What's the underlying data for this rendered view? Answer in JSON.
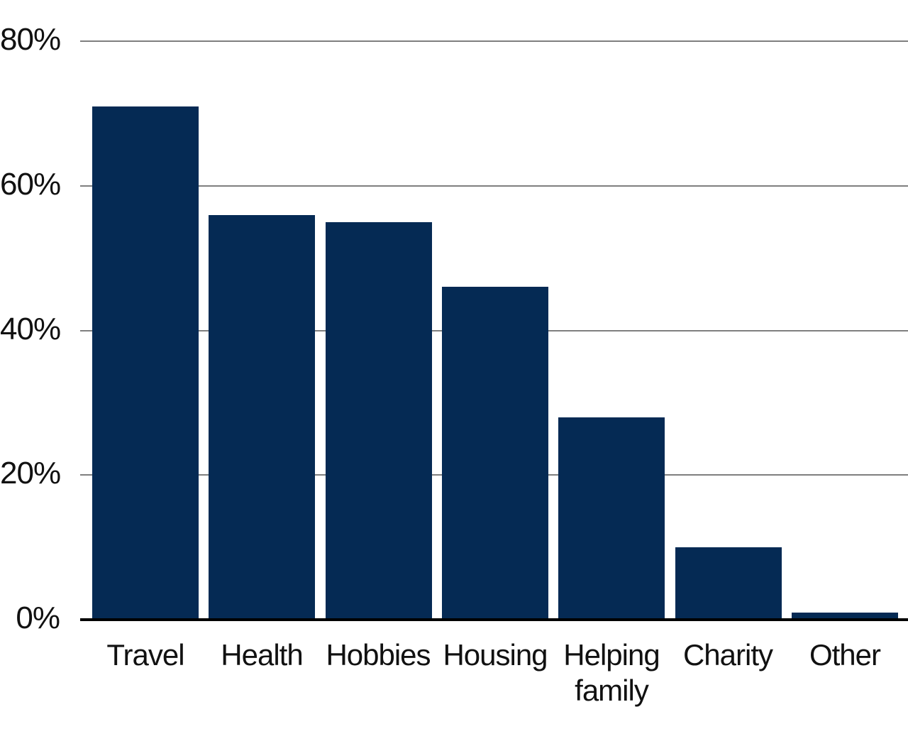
{
  "chart_data": {
    "type": "bar",
    "title": "",
    "xlabel": "",
    "ylabel": "",
    "categories": [
      "Travel",
      "Health",
      "Hobbies",
      "Housing",
      "Helping family",
      "Charity",
      "Other"
    ],
    "values": [
      71,
      56,
      55,
      46,
      28,
      10,
      1
    ],
    "value_unit": "%",
    "ylim": [
      0,
      80
    ],
    "y_ticks": [
      0,
      20,
      40,
      60,
      80
    ],
    "y_tick_labels": [
      "0%",
      "20%",
      "40%",
      "60%",
      "80%"
    ],
    "grid": "horizontal-only",
    "legend": "none",
    "colors": {
      "bar": "#052a54",
      "gridline": "#7f7f7f",
      "axis": "#000000",
      "text": "#111111",
      "background": "#ffffff"
    }
  }
}
